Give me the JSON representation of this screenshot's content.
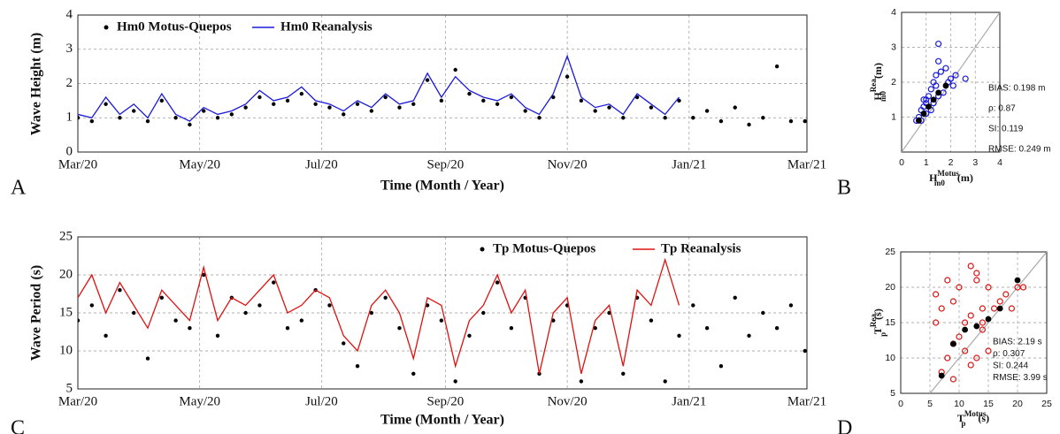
{
  "chart_data": [
    {
      "type": "line",
      "panel_label": "A",
      "x_label": "Time (Month / Year)",
      "y_label": "Wave Height (m)",
      "x": [
        0,
        7,
        14,
        21,
        28,
        35,
        42,
        49,
        56,
        63,
        70,
        77,
        84,
        91,
        98,
        105,
        112,
        119,
        126,
        133,
        140,
        147,
        154,
        161,
        168,
        175,
        182,
        189,
        196,
        203,
        210,
        217,
        224,
        231,
        238,
        245,
        252,
        259,
        266,
        273,
        280,
        287,
        294,
        301,
        308,
        315,
        322,
        329,
        336,
        343,
        350,
        357,
        364
      ],
      "series": [
        {
          "name": "Hm0 Motus-Quepos",
          "color": "#000000",
          "mode": "points",
          "values": [
            1.0,
            0.9,
            1.4,
            1.0,
            1.2,
            0.9,
            1.5,
            1.0,
            0.8,
            1.2,
            1.0,
            1.1,
            1.3,
            1.6,
            1.4,
            1.5,
            1.7,
            1.4,
            1.3,
            1.1,
            1.4,
            1.2,
            1.6,
            1.3,
            1.4,
            2.1,
            1.5,
            2.4,
            1.7,
            1.5,
            1.4,
            1.6,
            1.2,
            1.0,
            1.6,
            2.2,
            1.5,
            1.2,
            1.3,
            1.0,
            1.6,
            1.3,
            1.0,
            1.5,
            1.0,
            1.2,
            0.9,
            1.3,
            0.8,
            1.0,
            2.5,
            0.9,
            0.9
          ]
        },
        {
          "name": "Hm0 Reanalysis",
          "color": "#1a1adb",
          "mode": "line",
          "values": [
            1.1,
            1.0,
            1.6,
            1.1,
            1.4,
            1.0,
            1.7,
            1.1,
            0.9,
            1.3,
            1.1,
            1.2,
            1.4,
            1.8,
            1.5,
            1.6,
            1.9,
            1.5,
            1.4,
            1.2,
            1.5,
            1.3,
            1.7,
            1.4,
            1.5,
            2.3,
            1.6,
            2.2,
            1.8,
            1.6,
            1.5,
            1.7,
            1.3,
            1.1,
            1.7,
            2.8,
            1.6,
            1.3,
            1.4,
            1.1,
            1.7,
            1.4,
            1.1,
            1.6,
            null,
            null,
            null,
            null,
            null,
            null,
            null,
            null,
            null
          ]
        }
      ],
      "xlim": [
        0,
        365
      ],
      "xticks": [
        {
          "value": 0,
          "label": "Mar/20"
        },
        {
          "value": 61,
          "label": "May/20"
        },
        {
          "value": 122,
          "label": "Jul/20"
        },
        {
          "value": 184,
          "label": "Sep/20"
        },
        {
          "value": 245,
          "label": "Nov/20"
        },
        {
          "value": 306,
          "label": "Jan/21"
        },
        {
          "value": 365,
          "label": "Mar/21"
        }
      ],
      "ylim": [
        0,
        4
      ],
      "yticks": [
        0,
        1,
        2,
        3,
        4
      ],
      "grid": true,
      "legend": "upper left"
    },
    {
      "type": "scatter",
      "panel_label": "B",
      "x_label": {
        "base": "H",
        "sub": "m0",
        "sup": "Motus",
        "unit": "(m)"
      },
      "y_label": {
        "base": "H",
        "sub": "m0",
        "sup": "Rea.",
        "unit": "(m)"
      },
      "series": [
        {
          "color": "#1a1adb",
          "marker": "open",
          "x": [
            0.6,
            0.7,
            0.8,
            0.8,
            0.9,
            1.0,
            1.0,
            1.1,
            1.2,
            1.2,
            1.3,
            1.4,
            1.4,
            1.5,
            1.5,
            1.6,
            1.7,
            1.8,
            1.9,
            2.0,
            2.1,
            2.2,
            2.6,
            1.5,
            1.0,
            0.9,
            1.3
          ],
          "y": [
            0.9,
            1.0,
            0.9,
            1.2,
            1.3,
            1.1,
            1.5,
            1.6,
            1.2,
            1.8,
            1.4,
            1.9,
            2.2,
            1.6,
            3.1,
            2.3,
            1.7,
            2.4,
            2.0,
            2.1,
            1.9,
            2.2,
            2.1,
            2.6,
            1.4,
            1.5,
            2.0
          ]
        },
        {
          "color": "#000000",
          "marker": "filled",
          "x": [
            0.7,
            0.9,
            1.1,
            1.3,
            1.5,
            1.8
          ],
          "y": [
            0.9,
            1.1,
            1.3,
            1.5,
            1.7,
            1.9
          ]
        }
      ],
      "annotations": [
        "BIAS: 0.198 m",
        "ρ: 0.87",
        "SI: 0.119",
        "RMSE: 0.249 m"
      ],
      "xlim": [
        0,
        4
      ],
      "xticks": [
        0,
        1,
        2,
        3,
        4
      ],
      "ylim": [
        0,
        4
      ],
      "yticks": [
        1,
        2,
        3,
        4
      ],
      "grid": true,
      "identity_line": true
    },
    {
      "type": "line",
      "panel_label": "C",
      "x_label": "Time (Month / Year)",
      "y_label": "Wave Period (s)",
      "x": [
        0,
        7,
        14,
        21,
        28,
        35,
        42,
        49,
        56,
        63,
        70,
        77,
        84,
        91,
        98,
        105,
        112,
        119,
        126,
        133,
        140,
        147,
        154,
        161,
        168,
        175,
        182,
        189,
        196,
        203,
        210,
        217,
        224,
        231,
        238,
        245,
        252,
        259,
        266,
        273,
        280,
        287,
        294,
        301,
        308,
        315,
        322,
        329,
        336,
        343,
        350,
        357,
        364
      ],
      "series": [
        {
          "name": "Tp Motus-Quepos",
          "color": "#000000",
          "mode": "points",
          "values": [
            14,
            16,
            12,
            18,
            15,
            9,
            17,
            14,
            13,
            20,
            12,
            17,
            15,
            16,
            19,
            13,
            14,
            18,
            16,
            11,
            8,
            15,
            17,
            13,
            7,
            16,
            14,
            6,
            12,
            15,
            19,
            13,
            17,
            7,
            14,
            16,
            6,
            13,
            15,
            7,
            17,
            14,
            6,
            12,
            16,
            13,
            8,
            17,
            12,
            15,
            13,
            16,
            10
          ]
        },
        {
          "name": "Tp Reanalysis",
          "color": "#e01010",
          "mode": "line",
          "values": [
            17,
            20,
            15,
            19,
            16,
            13,
            18,
            16,
            14,
            21,
            14,
            17,
            16,
            18,
            20,
            15,
            16,
            18,
            17,
            12,
            10,
            16,
            18,
            15,
            9,
            17,
            16,
            8,
            14,
            16,
            20,
            15,
            18,
            7,
            15,
            17,
            7,
            14,
            16,
            8,
            18,
            16,
            22,
            16,
            null,
            null,
            null,
            null,
            null,
            null,
            null,
            null,
            null
          ]
        }
      ],
      "xlim": [
        0,
        365
      ],
      "xticks": [
        {
          "value": 0,
          "label": "Mar/20"
        },
        {
          "value": 61,
          "label": "May/20"
        },
        {
          "value": 122,
          "label": "Jul/20"
        },
        {
          "value": 184,
          "label": "Sep/20"
        },
        {
          "value": 245,
          "label": "Nov/20"
        },
        {
          "value": 306,
          "label": "Jan/21"
        },
        {
          "value": 365,
          "label": "Mar/21"
        }
      ],
      "ylim": [
        5,
        25
      ],
      "yticks": [
        5,
        10,
        15,
        20,
        25
      ],
      "grid": true,
      "legend": "upper right"
    },
    {
      "type": "scatter",
      "panel_label": "D",
      "x_label": {
        "base": "T",
        "sub": "p",
        "sup": "Motus",
        "unit": "(s)"
      },
      "y_label": {
        "base": "T",
        "sub": "p",
        "sup": "Rea.",
        "unit": "(s)"
      },
      "series": [
        {
          "color": "#e01010",
          "marker": "open",
          "x": [
            6,
            6,
            7,
            7,
            8,
            8,
            9,
            9,
            10,
            10,
            11,
            11,
            12,
            12,
            13,
            13,
            14,
            14,
            15,
            15,
            16,
            17,
            18,
            19,
            20,
            21,
            12,
            13,
            9,
            14
          ],
          "y": [
            15,
            19,
            8,
            17,
            10,
            21,
            12,
            18,
            13,
            20,
            15,
            11,
            23,
            16,
            10,
            22,
            17,
            14,
            20,
            11,
            17,
            18,
            19,
            17,
            20,
            20,
            9,
            21,
            7,
            15
          ]
        },
        {
          "color": "#000000",
          "marker": "filled",
          "x": [
            7,
            9,
            11,
            13,
            15,
            17,
            20
          ],
          "y": [
            7.5,
            12,
            14,
            14.5,
            15.5,
            17,
            21
          ]
        }
      ],
      "annotations": [
        "BIAS: 2.19 s",
        "ρ: 0.307",
        "SI: 0.244",
        "RMSE: 3.99 s"
      ],
      "xlim": [
        0,
        25
      ],
      "xticks": [
        0,
        5,
        10,
        15,
        20,
        25
      ],
      "ylim": [
        5,
        25
      ],
      "yticks": [
        5,
        10,
        15,
        20,
        25
      ],
      "grid": true,
      "identity_line": true
    }
  ]
}
